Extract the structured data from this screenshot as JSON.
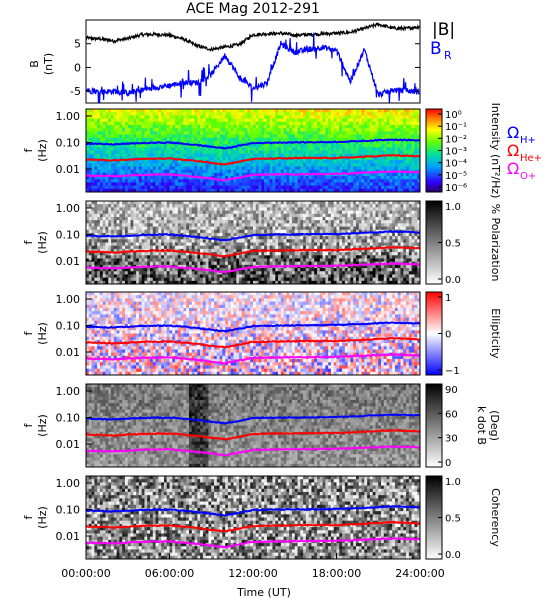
{
  "title": "ACE Mag 2012-291",
  "xlabel": "Time (UT)",
  "x_ticks": [
    "00:00:00",
    "06:00:00",
    "12:00:00",
    "18:00:00",
    "24:00:00"
  ],
  "colors": {
    "b_total": "#000000",
    "b_r": "#0000ff",
    "omega_h": "#0000ff",
    "omega_he": "#ff0000",
    "omega_o": "#ff00ff"
  },
  "legend": {
    "b_total": "|B|",
    "b_r": "B",
    "b_r_sub": "R",
    "omega": "Ω",
    "omega_h_sub": "H+",
    "omega_he_sub": "He+",
    "omega_o_sub": "O+"
  },
  "chart_data": [
    {
      "type": "line",
      "panel": "magnetic field",
      "ylabel": "B",
      "yunit": "(nT)",
      "ylim": [
        -7.5,
        10
      ],
      "y_ticks": [
        "5",
        "0",
        "-5"
      ],
      "x_hours": [
        0,
        1,
        2,
        3,
        4,
        5,
        6,
        7,
        8,
        9,
        10,
        11,
        12,
        13,
        14,
        15,
        16,
        17,
        18,
        19,
        20,
        21,
        22,
        23,
        24
      ],
      "series": [
        {
          "name": "|B|",
          "values": [
            6.2,
            6.0,
            5.6,
            6.1,
            6.9,
            7.0,
            6.8,
            6.0,
            4.5,
            3.8,
            4.3,
            4.8,
            6.9,
            7.1,
            7.2,
            6.8,
            6.9,
            7.1,
            7.2,
            7.4,
            8.2,
            9.1,
            8.3,
            8.2,
            8.6
          ]
        },
        {
          "name": "B_R",
          "values": [
            -4.8,
            -5.2,
            -5.0,
            -5.4,
            -4.8,
            -4.2,
            -3.8,
            -3.2,
            -3.2,
            -1.5,
            2.6,
            -2.0,
            -4.4,
            -3.3,
            5.0,
            3.2,
            3.8,
            4.3,
            3.6,
            -3.0,
            3.8,
            -5.8,
            -4.8,
            -4.9,
            -5.2
          ]
        }
      ]
    },
    {
      "type": "heatmap",
      "panel": "power spectrum",
      "ylabel": "f",
      "yunit": "(Hz)",
      "y_ticks": [
        "1.00",
        "0.10",
        "0.01"
      ],
      "colorbar_label": "Intensity (nT²/Hz)",
      "colorbar_ticks": [
        "10⁰",
        "10⁻¹",
        "10⁻²",
        "10⁻³",
        "10⁻⁴",
        "10⁻⁵",
        "10⁻⁶"
      ]
    },
    {
      "type": "heatmap",
      "panel": "polarization",
      "ylabel": "f",
      "yunit": "(Hz)",
      "y_ticks": [
        "1.00",
        "0.10",
        "0.01"
      ],
      "colorbar_label": "% Polarization",
      "colorbar_ticks": [
        "1.0",
        "0.5",
        "0.0"
      ]
    },
    {
      "type": "heatmap",
      "panel": "ellipticity",
      "ylabel": "f",
      "yunit": "(Hz)",
      "y_ticks": [
        "1.00",
        "0.10",
        "0.01"
      ],
      "colorbar_label": "Ellipticity",
      "colorbar_ticks": [
        "1",
        "0",
        "−1"
      ]
    },
    {
      "type": "heatmap",
      "panel": "k dot B",
      "ylabel": "f",
      "yunit": "(Hz)",
      "y_ticks": [
        "1.00",
        "0.10",
        "0.01"
      ],
      "colorbar_label": "k dot B",
      "colorbar_unit": "(Deg)",
      "colorbar_ticks": [
        "90",
        "60",
        "30",
        "0"
      ]
    },
    {
      "type": "heatmap",
      "panel": "coherency",
      "ylabel": "f",
      "yunit": "(Hz)",
      "y_ticks": [
        "1.00",
        "0.10",
        "0.01"
      ],
      "colorbar_label": "Coherency",
      "colorbar_ticks": [
        "1.0",
        "0.5",
        "0.0"
      ]
    },
    {
      "type": "line",
      "panel": "gyrofrequency overlays",
      "x_hours": [
        0,
        2,
        4,
        6,
        8,
        10,
        12,
        14,
        16,
        18,
        20,
        22,
        24
      ],
      "series": [
        {
          "name": "Ω H+",
          "values": [
            0.09,
            0.085,
            0.095,
            0.1,
            0.08,
            0.06,
            0.095,
            0.1,
            0.102,
            0.105,
            0.115,
            0.13,
            0.12
          ]
        },
        {
          "name": "Ω He+",
          "values": [
            0.023,
            0.021,
            0.024,
            0.025,
            0.02,
            0.015,
            0.024,
            0.025,
            0.026,
            0.026,
            0.029,
            0.033,
            0.03
          ]
        },
        {
          "name": "Ω O+",
          "values": [
            0.0056,
            0.0053,
            0.006,
            0.0063,
            0.005,
            0.0038,
            0.006,
            0.0063,
            0.0064,
            0.0066,
            0.0072,
            0.0081,
            0.0075
          ]
        }
      ]
    }
  ]
}
